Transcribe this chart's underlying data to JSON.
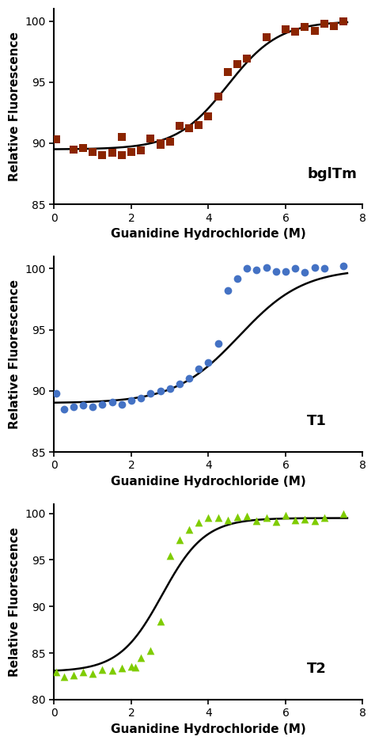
{
  "panels": [
    {
      "label": "bglTm",
      "marker": "s",
      "color": "#8B2500",
      "ylim": [
        85,
        101
      ],
      "yticks": [
        85,
        90,
        95,
        100
      ],
      "baseline": 89.5,
      "plateau": 100.0,
      "midpoint": 4.5,
      "steepness": 1.5,
      "scatter_x": [
        0.05,
        0.5,
        0.75,
        1.0,
        1.25,
        1.5,
        1.75,
        1.75,
        2.0,
        2.25,
        2.5,
        2.75,
        2.75,
        3.0,
        3.25,
        3.5,
        3.75,
        4.0,
        4.25,
        4.5,
        4.75,
        5.0,
        5.5,
        6.0,
        6.25,
        6.5,
        6.75,
        7.0,
        7.25,
        7.5
      ],
      "scatter_y": [
        90.3,
        89.5,
        89.6,
        89.3,
        89.0,
        89.2,
        90.5,
        89.0,
        89.3,
        89.4,
        90.4,
        89.9,
        90.0,
        90.1,
        91.4,
        91.2,
        91.5,
        92.2,
        93.8,
        95.8,
        96.5,
        96.9,
        98.7,
        99.3,
        99.1,
        99.5,
        99.2,
        99.8,
        99.6,
        100.0
      ]
    },
    {
      "label": "T1",
      "marker": "o",
      "color": "#4472C4",
      "ylim": [
        85,
        101
      ],
      "yticks": [
        85,
        90,
        95,
        100
      ],
      "baseline": 89.0,
      "plateau": 100.0,
      "midpoint": 4.8,
      "steepness": 1.2,
      "scatter_x": [
        0.05,
        0.25,
        0.5,
        0.75,
        1.0,
        1.25,
        1.5,
        1.75,
        2.0,
        2.25,
        2.5,
        2.75,
        3.0,
        3.25,
        3.5,
        3.75,
        4.0,
        4.25,
        4.5,
        4.75,
        5.0,
        5.25,
        5.5,
        5.75,
        6.0,
        6.25,
        6.5,
        6.75,
        7.0,
        7.5
      ],
      "scatter_y": [
        89.8,
        88.5,
        88.7,
        88.8,
        88.7,
        88.9,
        89.1,
        88.9,
        89.2,
        89.4,
        89.8,
        90.0,
        90.2,
        90.6,
        91.0,
        91.8,
        92.3,
        93.9,
        98.2,
        99.2,
        100.0,
        99.9,
        100.1,
        99.8,
        99.8,
        100.0,
        99.7,
        100.1,
        100.0,
        100.2
      ]
    },
    {
      "label": "T2",
      "marker": "^",
      "color": "#7FCC00",
      "ylim": [
        80,
        101
      ],
      "yticks": [
        80,
        85,
        90,
        95,
        100
      ],
      "baseline": 83.0,
      "plateau": 99.5,
      "midpoint": 2.8,
      "steepness": 1.8,
      "scatter_x": [
        0.05,
        0.25,
        0.5,
        0.75,
        1.0,
        1.25,
        1.5,
        1.75,
        2.0,
        2.1,
        2.25,
        2.5,
        2.75,
        3.0,
        3.25,
        3.5,
        3.75,
        4.0,
        4.25,
        4.5,
        4.75,
        5.0,
        5.25,
        5.5,
        5.75,
        6.0,
        6.25,
        6.5,
        6.75,
        7.0,
        7.5
      ],
      "scatter_y": [
        83.0,
        82.5,
        82.6,
        83.0,
        82.8,
        83.2,
        83.1,
        83.4,
        83.6,
        83.5,
        84.5,
        85.3,
        88.4,
        95.5,
        97.2,
        98.3,
        99.0,
        99.5,
        99.5,
        99.3,
        99.6,
        99.7,
        99.2,
        99.5,
        99.1,
        99.8,
        99.3,
        99.4,
        99.2,
        99.5,
        100.0
      ]
    }
  ],
  "xlabel": "Guanidine Hydrochloride (M)",
  "ylabel": "Relative Fluorescence",
  "xlim": [
    0,
    8
  ],
  "xticks": [
    0,
    2,
    4,
    6,
    8
  ],
  "line_color": "black",
  "line_width": 1.8,
  "marker_size": 7,
  "background_color": "white",
  "label_fontsize": 11,
  "tick_fontsize": 10,
  "annotation_fontsize": 13
}
